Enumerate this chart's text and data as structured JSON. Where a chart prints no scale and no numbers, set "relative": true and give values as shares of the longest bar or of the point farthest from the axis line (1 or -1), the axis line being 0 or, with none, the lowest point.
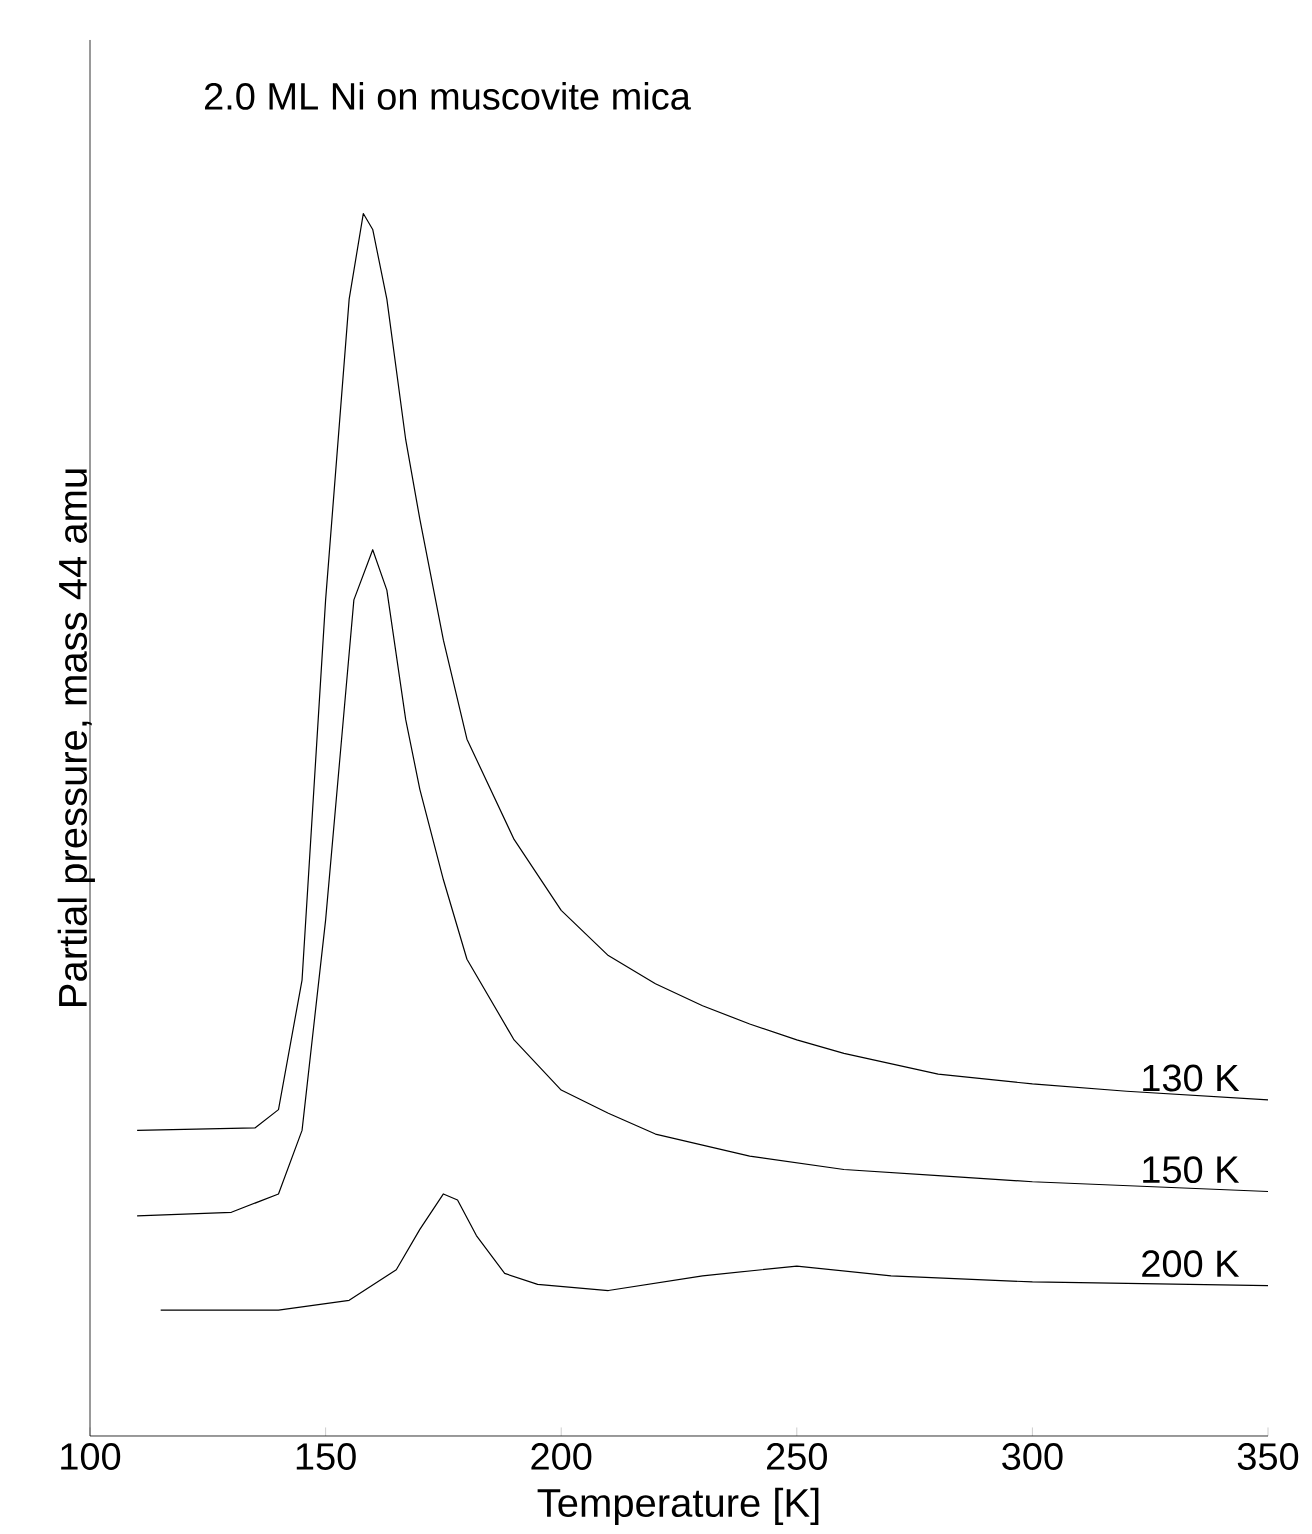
{
  "chart_data": {
    "type": "line",
    "title": "2.0 ML Ni on muscovite mica",
    "xlabel": "Temperature [K]",
    "ylabel": "Partial pressure, mass 44 amu",
    "relative": true,
    "marker": "none",
    "xlim": [
      100,
      350
    ],
    "xticks": [
      100,
      150,
      200,
      250,
      300,
      350
    ],
    "series": [
      {
        "name": "130 K",
        "color": "#000000",
        "x": [
          110,
          135,
          140,
          145,
          150,
          155,
          158,
          160,
          163,
          167,
          170,
          175,
          180,
          190,
          200,
          210,
          220,
          230,
          240,
          250,
          260,
          280,
          300,
          320,
          350
        ],
        "values": [
          0.25,
          0.252,
          0.267,
          0.373,
          0.684,
          0.93,
          1,
          0.987,
          0.93,
          0.815,
          0.75,
          0.651,
          0.57,
          0.488,
          0.43,
          0.393,
          0.37,
          0.352,
          0.337,
          0.324,
          0.313,
          0.296,
          0.288,
          0.282,
          0.275
        ]
      },
      {
        "name": "150 K",
        "color": "#000000",
        "x": [
          110,
          130,
          140,
          145,
          150,
          153,
          156,
          160,
          163,
          167,
          170,
          175,
          180,
          190,
          200,
          210,
          220,
          240,
          260,
          280,
          300,
          350
        ],
        "values": [
          0.18,
          0.183,
          0.198,
          0.25,
          0.422,
          0.553,
          0.684,
          0.725,
          0.692,
          0.586,
          0.529,
          0.455,
          0.39,
          0.324,
          0.283,
          0.264,
          0.247,
          0.229,
          0.218,
          0.213,
          0.208,
          0.2
        ]
      },
      {
        "name": "200 K",
        "color": "#000000",
        "x": [
          115,
          140,
          155,
          165,
          170,
          175,
          178,
          182,
          188,
          195,
          210,
          230,
          250,
          270,
          300,
          350
        ],
        "values": [
          0.103,
          0.103,
          0.111,
          0.136,
          0.169,
          0.198,
          0.193,
          0.164,
          0.133,
          0.124,
          0.119,
          0.131,
          0.139,
          0.131,
          0.126,
          0.123
        ]
      }
    ]
  }
}
